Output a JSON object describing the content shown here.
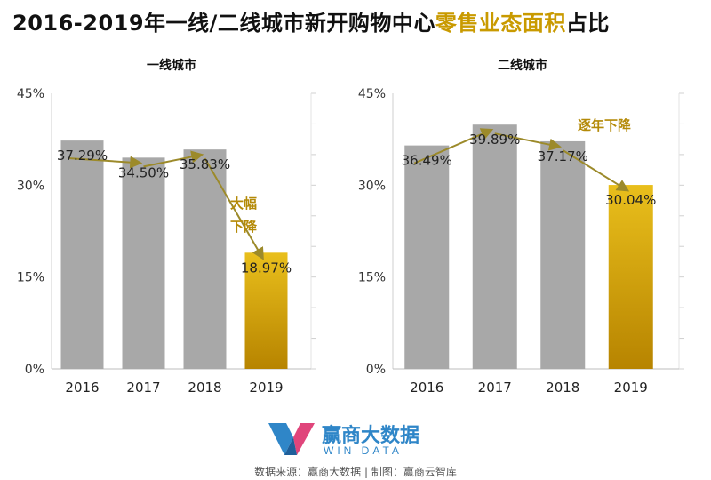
{
  "title": {
    "part1": "2016-2019年一线/二线城市新开购物中心",
    "part2": "零售业态面积",
    "part3": "占比"
  },
  "colors": {
    "bar_gray": "#a8a8a8",
    "bar_gold": "#d7a600",
    "arrow": "#9c8a2a",
    "annotation": "#b48a08",
    "title_highlight": "#c99a00",
    "logo": "#2f86c8"
  },
  "chart_data": [
    {
      "type": "bar",
      "title": "一线城市",
      "categories": [
        "2016",
        "2017",
        "2018",
        "2019"
      ],
      "values": [
        37.29,
        34.5,
        35.83,
        18.97
      ],
      "value_labels": [
        "37.29%",
        "34.50%",
        "35.83%",
        "18.97%"
      ],
      "yticks": [
        "0%",
        "15%",
        "30%",
        "45%"
      ],
      "ylim": [
        0,
        45
      ],
      "highlight_index": 3,
      "annotation": [
        "大幅",
        "下降"
      ]
    },
    {
      "type": "bar",
      "title": "二线城市",
      "categories": [
        "2016",
        "2017",
        "2018",
        "2019"
      ],
      "values": [
        36.49,
        39.89,
        37.17,
        30.04
      ],
      "value_labels": [
        "36.49%",
        "39.89%",
        "37.17%",
        "30.04%"
      ],
      "yticks": [
        "0%",
        "15%",
        "30%",
        "45%"
      ],
      "ylim": [
        0,
        45
      ],
      "highlight_index": 3,
      "annotation": [
        "逐年下降"
      ]
    }
  ],
  "logo": {
    "name": "赢商大数据",
    "sub": "WIN DATA"
  },
  "source": "数据来源：赢商大数据 | 制图：赢商云智库"
}
